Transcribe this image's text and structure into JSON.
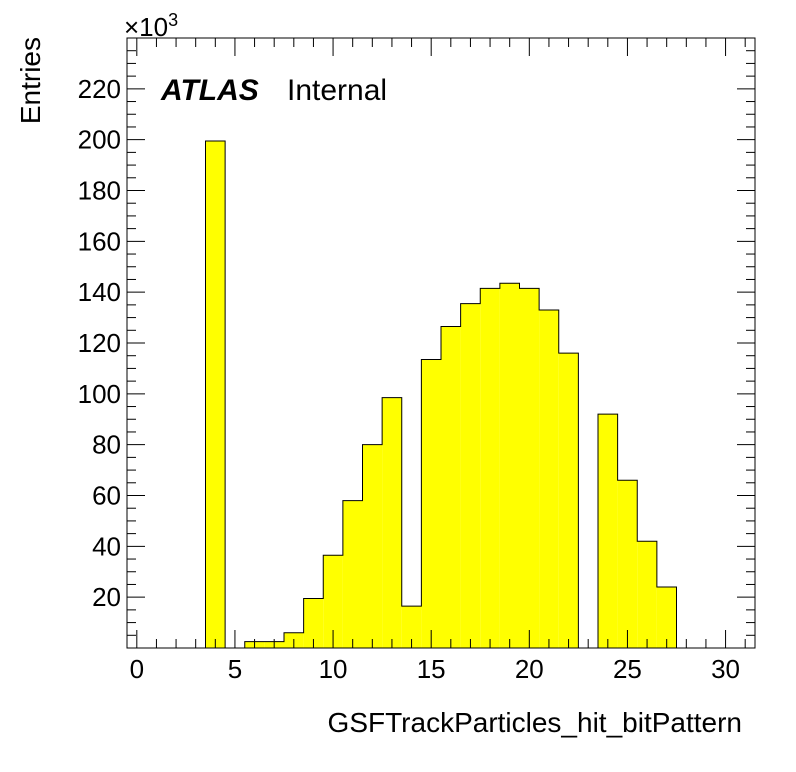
{
  "chart_data": {
    "type": "bar",
    "xlabel": "GSFTrackParticles_hit_bitPattern",
    "ylabel": "Entries",
    "y_multiplier_base": "×10",
    "y_multiplier_exp": "3",
    "label_bold": "ATLAS",
    "label_text": "Internal",
    "xlim": [
      -0.5,
      31.5
    ],
    "ylim": [
      0,
      240
    ],
    "x_major_ticks": [
      0,
      5,
      10,
      15,
      20,
      25,
      30
    ],
    "y_major_ticks": [
      20,
      40,
      60,
      80,
      100,
      120,
      140,
      160,
      180,
      200,
      220
    ],
    "bin_edges": [
      3.5,
      4.5,
      5.5,
      6.5,
      7.5,
      8.5,
      9.5,
      10.5,
      11.5,
      12.5,
      13.5,
      14.5,
      15.5,
      16.5,
      17.5,
      18.5,
      19.5,
      20.5,
      21.5,
      22.5,
      23.5,
      24.5,
      25.5,
      26.5,
      27.5
    ],
    "values": [
      199.5,
      0,
      2.5,
      2.5,
      6,
      19.5,
      36.5,
      58,
      80,
      98.5,
      16.5,
      113.5,
      126.5,
      135.5,
      141.5,
      143.5,
      141.5,
      133,
      116,
      0,
      92,
      66,
      42,
      24
    ],
    "bar_color": "#ffff00",
    "grid": false
  }
}
